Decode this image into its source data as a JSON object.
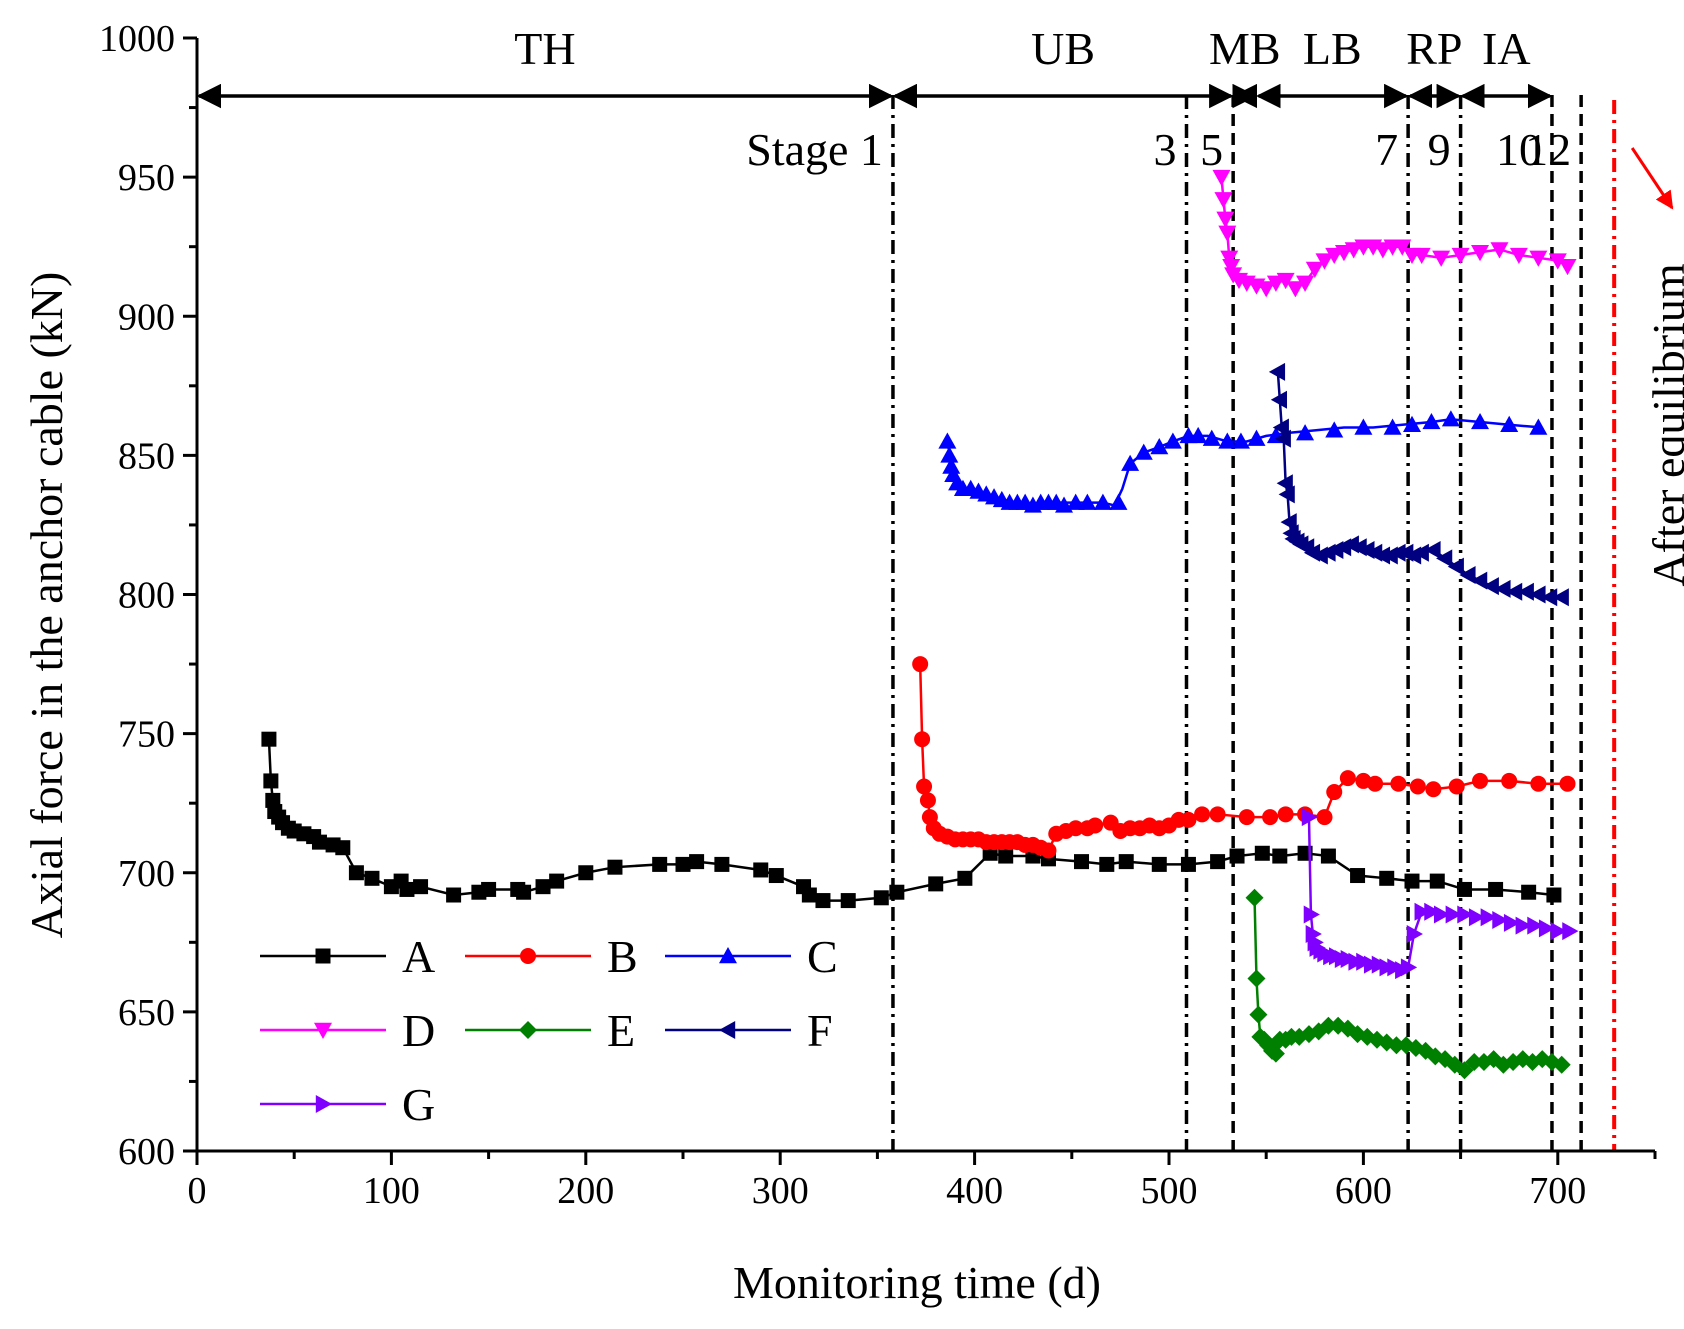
{
  "chart_data": {
    "type": "line",
    "xlabel": "Monitoring time (d)",
    "ylabel": "Axial force in the anchor cable (kN)",
    "xlim": [
      0,
      750
    ],
    "ylim": [
      600,
      1000
    ],
    "xticks": [
      0,
      100,
      200,
      300,
      400,
      500,
      600,
      700
    ],
    "yticks": [
      600,
      650,
      700,
      750,
      800,
      850,
      900,
      950,
      1000
    ],
    "phases": [
      {
        "label": "TH",
        "from": 0,
        "to": 358
      },
      {
        "label": "UB",
        "from": 358,
        "to": 533
      },
      {
        "label": "MB",
        "from": 533,
        "to": 545
      },
      {
        "label": "LB",
        "from": 545,
        "to": 623
      },
      {
        "label": "RP",
        "from": 623,
        "to": 650
      },
      {
        "label": "IA",
        "from": 650,
        "to": 697
      }
    ],
    "stage_lines": [
      {
        "x": 358,
        "style": "dashdot",
        "label": "Stage 1"
      },
      {
        "x": 509,
        "style": "dashdot",
        "label": "3"
      },
      {
        "x": 533,
        "style": "dashed",
        "label": "5"
      },
      {
        "x": 623,
        "style": "dashdot",
        "label": "7"
      },
      {
        "x": 650,
        "style": "dashdot",
        "label": "9"
      },
      {
        "x": 697,
        "style": "dashed",
        "label": "10"
      },
      {
        "x": 712,
        "style": "dashed",
        "label": "12"
      }
    ],
    "equilibrium": {
      "x": 729,
      "label": "After equilibrium",
      "color": "#ff0000"
    },
    "series": [
      {
        "name": "A",
        "color": "#000000",
        "marker": "square",
        "x": [
          37,
          38,
          39,
          40,
          42,
          44,
          47,
          50,
          55,
          60,
          63,
          70,
          75,
          82,
          90,
          100,
          105,
          108,
          115,
          132,
          145,
          150,
          165,
          168,
          178,
          185,
          200,
          215,
          238,
          250,
          257,
          270,
          290,
          298,
          312,
          315,
          322,
          335,
          352,
          360,
          380,
          395,
          408,
          416,
          430,
          438,
          455,
          468,
          478,
          495,
          510,
          525,
          535,
          548,
          557,
          570,
          582,
          597,
          612,
          625,
          638,
          652,
          668,
          685,
          698
        ],
        "y": [
          748,
          733,
          726,
          722,
          720,
          718,
          716,
          715,
          714,
          713,
          711,
          710,
          709,
          700,
          698,
          695,
          697,
          694,
          695,
          692,
          693,
          694,
          694,
          693,
          695,
          697,
          700,
          702,
          703,
          703,
          704,
          703,
          701,
          699,
          695,
          692,
          690,
          690,
          691,
          693,
          696,
          698,
          707,
          706,
          706,
          705,
          704,
          703,
          704,
          703,
          703,
          704,
          706,
          707,
          706,
          707,
          706,
          699,
          698,
          697,
          697,
          694,
          694,
          693,
          692
        ]
      },
      {
        "name": "B",
        "color": "#ff0000",
        "marker": "circle",
        "x": [
          372,
          373,
          374,
          376,
          377,
          379,
          382,
          386,
          390,
          394,
          398,
          402,
          406,
          410,
          414,
          418,
          422,
          426,
          430,
          434,
          438,
          442,
          447,
          452,
          458,
          462,
          470,
          475,
          480,
          485,
          490,
          495,
          500,
          505,
          510,
          517,
          525,
          540,
          552,
          560,
          570,
          580,
          585,
          592,
          600,
          606,
          618,
          628,
          636,
          648,
          660,
          675,
          690,
          705
        ],
        "y": [
          775,
          748,
          731,
          726,
          720,
          716,
          714,
          713,
          712,
          712,
          712,
          712,
          711,
          711,
          711,
          711,
          711,
          710,
          710,
          709,
          708,
          714,
          715,
          716,
          716,
          717,
          718,
          715,
          716,
          716,
          717,
          716,
          717,
          719,
          719,
          721,
          721,
          720,
          720,
          721,
          721,
          720,
          729,
          734,
          733,
          732,
          732,
          731,
          730,
          731,
          733,
          733,
          732,
          732
        ]
      },
      {
        "name": "C",
        "color": "#0000ff",
        "marker": "triangle-up",
        "x": [
          386,
          387,
          388,
          389,
          391,
          394,
          398,
          402,
          406,
          410,
          414,
          418,
          422,
          426,
          430,
          434,
          438,
          442,
          446,
          452,
          458,
          466,
          474,
          480,
          487,
          495,
          502,
          510,
          515,
          522,
          530,
          537,
          545,
          555,
          570,
          585,
          600,
          615,
          625,
          635,
          645,
          660,
          675,
          690
        ],
        "y": [
          855,
          850,
          846,
          843,
          840,
          838,
          838,
          837,
          836,
          835,
          834,
          833,
          833,
          833,
          832,
          833,
          833,
          833,
          832,
          833,
          833,
          833,
          833,
          847,
          851,
          853,
          855,
          857,
          857,
          856,
          855,
          855,
          856,
          857,
          858,
          859,
          860,
          860,
          861,
          862,
          863,
          862,
          861,
          860
        ],
        "line_x": [
          386,
          389,
          394,
          402,
          410,
          418,
          426,
          434,
          442,
          450,
          458,
          466,
          472,
          476,
          480,
          487,
          495,
          502,
          510,
          520,
          530,
          540,
          550,
          560,
          575,
          590,
          605,
          620,
          635,
          645,
          660,
          675,
          692
        ],
        "line_y": [
          855,
          843,
          838,
          836,
          834,
          833,
          833,
          832,
          833,
          833,
          833,
          833,
          832,
          838,
          847,
          851,
          853,
          855,
          857,
          857,
          855,
          855,
          857,
          858,
          859,
          860,
          860,
          861,
          862,
          863,
          862,
          861,
          860
        ]
      },
      {
        "name": "D",
        "color": "#ff00ff",
        "marker": "triangle-down",
        "x": [
          527,
          528,
          529,
          530,
          531,
          532,
          533,
          536,
          540,
          545,
          550,
          555,
          560,
          565,
          570,
          575,
          580,
          585,
          590,
          595,
          600,
          605,
          610,
          615,
          620,
          625,
          630,
          640,
          650,
          660,
          670,
          680,
          690,
          700,
          705
        ],
        "y": [
          950,
          942,
          935,
          930,
          921,
          918,
          915,
          913,
          912,
          911,
          910,
          912,
          913,
          910,
          912,
          917,
          920,
          922,
          923,
          924,
          925,
          925,
          924,
          925,
          925,
          922,
          922,
          921,
          922,
          923,
          924,
          922,
          921,
          920,
          918
        ]
      },
      {
        "name": "E",
        "color": "#008000",
        "marker": "diamond",
        "x": [
          544,
          545,
          546,
          547,
          549,
          551,
          553,
          555,
          557,
          560,
          563,
          567,
          572,
          577,
          582,
          587,
          592,
          597,
          602,
          607,
          612,
          617,
          622,
          627,
          632,
          637,
          642,
          647,
          652,
          657,
          662,
          667,
          672,
          677,
          682,
          687,
          692,
          697,
          702
        ],
        "y": [
          691,
          662,
          649,
          641,
          640,
          638,
          636,
          635,
          640,
          640,
          641,
          641,
          642,
          643,
          645,
          645,
          644,
          642,
          641,
          640,
          639,
          638,
          638,
          637,
          636,
          634,
          633,
          631,
          629,
          632,
          632,
          633,
          631,
          632,
          633,
          632,
          633,
          632,
          631
        ]
      },
      {
        "name": "F",
        "color": "#000080",
        "marker": "triangle-left",
        "x": [
          556,
          557,
          558,
          559,
          560,
          561,
          562,
          563,
          564,
          566,
          568,
          571,
          574,
          578,
          582,
          586,
          590,
          594,
          598,
          602,
          606,
          610,
          614,
          618,
          622,
          626,
          630,
          636,
          642,
          648,
          654,
          660,
          666,
          672,
          678,
          684,
          690,
          696,
          702
        ],
        "y": [
          880,
          870,
          860,
          856,
          840,
          836,
          826,
          822,
          820,
          819,
          818,
          817,
          815,
          814,
          815,
          816,
          817,
          818,
          817,
          816,
          815,
          814,
          814,
          815,
          815,
          814,
          815,
          816,
          813,
          810,
          807,
          805,
          803,
          802,
          801,
          801,
          800,
          799,
          799
        ]
      },
      {
        "name": "G",
        "color": "#8000ff",
        "marker": "triangle-right",
        "x": [
          572,
          573,
          574,
          575,
          576,
          578,
          580,
          583,
          586,
          589,
          592,
          596,
          600,
          604,
          608,
          612,
          616,
          620,
          623,
          626,
          630,
          635,
          640,
          646,
          652,
          658,
          664,
          670,
          676,
          682,
          688,
          694,
          700,
          706
        ],
        "y": [
          720,
          685,
          678,
          675,
          673,
          672,
          671,
          670,
          670,
          669,
          669,
          668,
          668,
          667,
          667,
          666,
          666,
          665,
          666,
          678,
          686,
          686,
          685,
          685,
          685,
          684,
          684,
          683,
          682,
          681,
          681,
          680,
          679,
          679
        ]
      }
    ]
  }
}
